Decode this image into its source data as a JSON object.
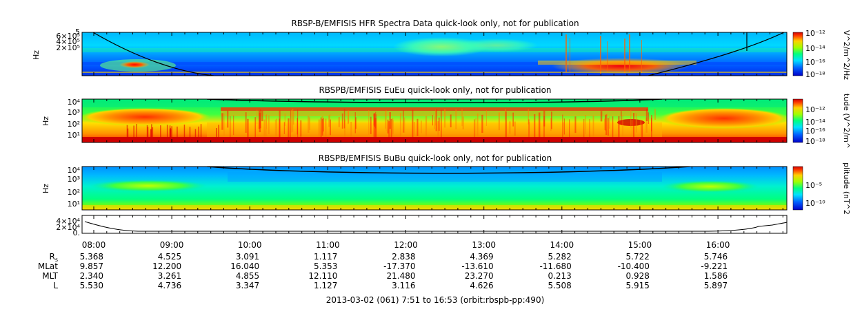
{
  "chart_data": [
    {
      "type": "heatmap",
      "title": "RBSP-B/EMFISIS  HFR Spectra Data quick-look only, not for publication",
      "ylabel": "Hz",
      "ytick_labels": [
        "5",
        "6×10⁵",
        "4×10⁵",
        "2×10⁵"
      ],
      "colorbar_label": "V^2/m^2/Hz",
      "colorbar_ticks": [
        "10⁻¹²",
        "10⁻¹⁴",
        "10⁻¹⁶",
        "10⁻¹⁸"
      ],
      "curve": "fce"
    },
    {
      "type": "heatmap",
      "title": "RBSPB/EMFISIS  EuEu quick-look only, not for publication",
      "ylabel": "Hz",
      "ytick_labels": [
        "10⁴",
        "10³",
        "10²",
        "10¹"
      ],
      "colorbar_label": "tude (V^2/m^",
      "colorbar_ticks": [
        "10⁻¹²",
        "10⁻¹⁴",
        "10⁻¹⁶",
        "10⁻¹⁸"
      ]
    },
    {
      "type": "heatmap",
      "title": "RBSPB/EMFISIS  BuBu quick-look only, not for publication",
      "ylabel": "Hz",
      "ytick_labels": [
        "10⁴",
        "10³",
        "10²",
        "10¹"
      ],
      "colorbar_label": "plitude (nT^2",
      "colorbar_ticks": [
        "10⁻⁵",
        "10⁻¹⁰"
      ]
    },
    {
      "type": "line",
      "ytick_labels": [
        "4×10⁴",
        "2×10⁴",
        "0."
      ],
      "ylim": [
        0,
        45000
      ]
    }
  ],
  "x_axis": {
    "time_labels": [
      "08:00",
      "09:00",
      "10:00",
      "11:00",
      "12:00",
      "13:00",
      "14:00",
      "15:00",
      "16:00"
    ],
    "rows": [
      {
        "label": "R",
        "label_sub": "s",
        "values": [
          "5.368",
          "4.525",
          "3.091",
          "1.117",
          "2.838",
          "4.369",
          "5.282",
          "5.722",
          "5.746"
        ]
      },
      {
        "label": "MLat",
        "values": [
          "9.857",
          "12.200",
          "16.040",
          "5.353",
          "-17.370",
          "-13.610",
          "-11.680",
          "-10.400",
          "-9.221"
        ]
      },
      {
        "label": "MLT",
        "values": [
          "2.340",
          "3.261",
          "4.855",
          "12.110",
          "21.480",
          "23.270",
          "0.213",
          "0.928",
          "1.586"
        ]
      },
      {
        "label": "L",
        "values": [
          "5.530",
          "4.736",
          "3.347",
          "1.127",
          "3.116",
          "4.626",
          "5.508",
          "5.915",
          "5.897"
        ]
      }
    ]
  },
  "footer": "2013-03-02 (061) 7:51 to 16:53 (orbit:rbspb-pp:490)"
}
